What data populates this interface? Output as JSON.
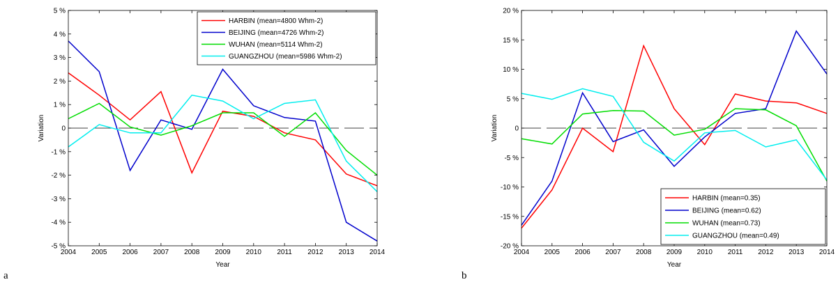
{
  "chart_data": [
    {
      "type": "line",
      "panel_label": "a",
      "xlabel": "Year",
      "ylabel": "Variation",
      "x": [
        2004,
        2005,
        2006,
        2007,
        2008,
        2009,
        2010,
        2011,
        2012,
        2013,
        2014
      ],
      "xlim": [
        2004,
        2014
      ],
      "ylim": [
        -5,
        5
      ],
      "ytick_format": "percent",
      "yticks": [
        -5,
        -4,
        -3,
        -2,
        -1,
        0,
        1,
        2,
        3,
        4,
        5
      ],
      "ytick_labels": [
        "-5 %",
        "-4 %",
        "-3 %",
        "-2 %",
        "-1 %",
        "0",
        "1 %",
        "2 %",
        "3 %",
        "4 %",
        "5 %"
      ],
      "zero_line": true,
      "grid": false,
      "legend_position": "top-right",
      "series": [
        {
          "name": "HARBIN (mean=4800 Whm-2)",
          "color": "#ff0000",
          "values": [
            2.35,
            1.4,
            0.35,
            1.55,
            -1.9,
            0.72,
            0.5,
            -0.2,
            -0.5,
            -1.95,
            -2.45
          ]
        },
        {
          "name": "BEIJING (mean=4726 Whm-2)",
          "color": "#0000cc",
          "values": [
            3.7,
            2.4,
            -1.8,
            0.35,
            -0.05,
            2.5,
            0.95,
            0.45,
            0.3,
            -4.0,
            -4.8
          ]
        },
        {
          "name": "WUHAN (mean=5114 Whm-2)",
          "color": "#00dd00",
          "values": [
            0.4,
            1.05,
            0.05,
            -0.3,
            0.1,
            0.65,
            0.65,
            -0.35,
            0.65,
            -0.95,
            -2.0
          ]
        },
        {
          "name": "GUANGZHOU (mean=5986 Whm-2)",
          "color": "#00eeee",
          "values": [
            -0.8,
            0.15,
            -0.2,
            -0.2,
            1.4,
            1.15,
            0.4,
            1.05,
            1.2,
            -1.4,
            -2.7
          ]
        }
      ]
    },
    {
      "type": "line",
      "panel_label": "b",
      "xlabel": "Year",
      "ylabel": "Variation",
      "x": [
        2004,
        2005,
        2006,
        2007,
        2008,
        2009,
        2010,
        2011,
        2012,
        2013,
        2014
      ],
      "xlim": [
        2004,
        2014
      ],
      "ylim": [
        -20,
        20
      ],
      "ytick_format": "percent",
      "yticks": [
        -20,
        -15,
        -10,
        -5,
        0,
        5,
        10,
        15,
        20
      ],
      "ytick_labels": [
        "-20 %",
        "-15 %",
        "-10 %",
        "-5 %",
        "0",
        "5 %",
        "10 %",
        "15 %",
        "20 %"
      ],
      "zero_line": true,
      "grid": false,
      "legend_position": "bottom-right",
      "series": [
        {
          "name": "HARBIN (mean=0.35)",
          "color": "#ff0000",
          "values": [
            -17.0,
            -10.5,
            0.0,
            -4.0,
            14.0,
            3.3,
            -2.8,
            5.8,
            4.6,
            4.3,
            2.5
          ]
        },
        {
          "name": "BEIJING (mean=0.62)",
          "color": "#0000cc",
          "values": [
            -16.5,
            -9.0,
            6.0,
            -2.3,
            -0.3,
            -6.5,
            -1.5,
            2.5,
            3.3,
            16.5,
            9.2
          ]
        },
        {
          "name": "WUHAN (mean=0.73)",
          "color": "#00dd00",
          "values": [
            -1.8,
            -2.7,
            2.4,
            3.0,
            2.9,
            -1.2,
            -0.2,
            3.3,
            3.1,
            0.4,
            -9.0
          ]
        },
        {
          "name": "GUANGZHOU (mean=0.49)",
          "color": "#00eeee",
          "values": [
            5.9,
            4.9,
            6.7,
            5.4,
            -2.4,
            -5.6,
            -0.8,
            -0.4,
            -3.2,
            -2.0,
            -8.8
          ]
        }
      ]
    }
  ]
}
